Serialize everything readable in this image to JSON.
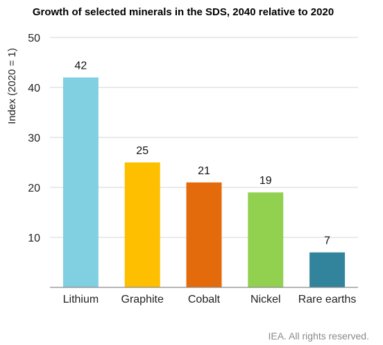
{
  "chart_data": {
    "type": "bar",
    "title": "Growth of selected minerals in the SDS, 2040 relative to 2020",
    "ylabel": "Index (2020 = 1)",
    "xlabel": "",
    "categories": [
      "Lithium",
      "Graphite",
      "Cobalt",
      "Nickel",
      "Rare earths"
    ],
    "values": [
      42,
      25,
      21,
      19,
      7
    ],
    "data_labels": [
      "42",
      "25",
      "21",
      "19",
      "7"
    ],
    "colors": [
      "#81d0e2",
      "#fdbf00",
      "#e46b0c",
      "#92d050",
      "#31849b"
    ],
    "ylim": [
      0,
      50
    ],
    "yticks": [
      10,
      20,
      30,
      40,
      50
    ],
    "ytick_labels": [
      "10",
      "20",
      "30",
      "40",
      "50"
    ],
    "grid": true,
    "legend": "none"
  },
  "footer": {
    "credit": "IEA. All rights reserved."
  }
}
